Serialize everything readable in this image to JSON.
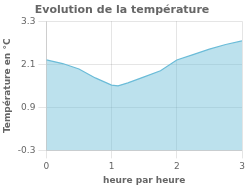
{
  "chart_data": {
    "type": "area",
    "title": "Evolution de la température",
    "xlabel": "heure par heure",
    "ylabel": "Température en °C",
    "x": [
      0,
      0.25,
      0.5,
      0.75,
      1.0,
      1.1,
      1.25,
      1.5,
      1.75,
      2.0,
      2.25,
      2.5,
      2.75,
      3.0
    ],
    "values": [
      2.22,
      2.12,
      1.97,
      1.72,
      1.52,
      1.5,
      1.58,
      1.75,
      1.92,
      2.22,
      2.37,
      2.52,
      2.65,
      2.75
    ],
    "color": "#6bbcd8",
    "xlim": [
      0,
      3
    ],
    "ylim": [
      -0.3,
      3.3
    ],
    "xticks": [
      0,
      1,
      2,
      3
    ],
    "yticks": [
      -0.3,
      0.9,
      2.1,
      3.3
    ],
    "grid": true
  }
}
